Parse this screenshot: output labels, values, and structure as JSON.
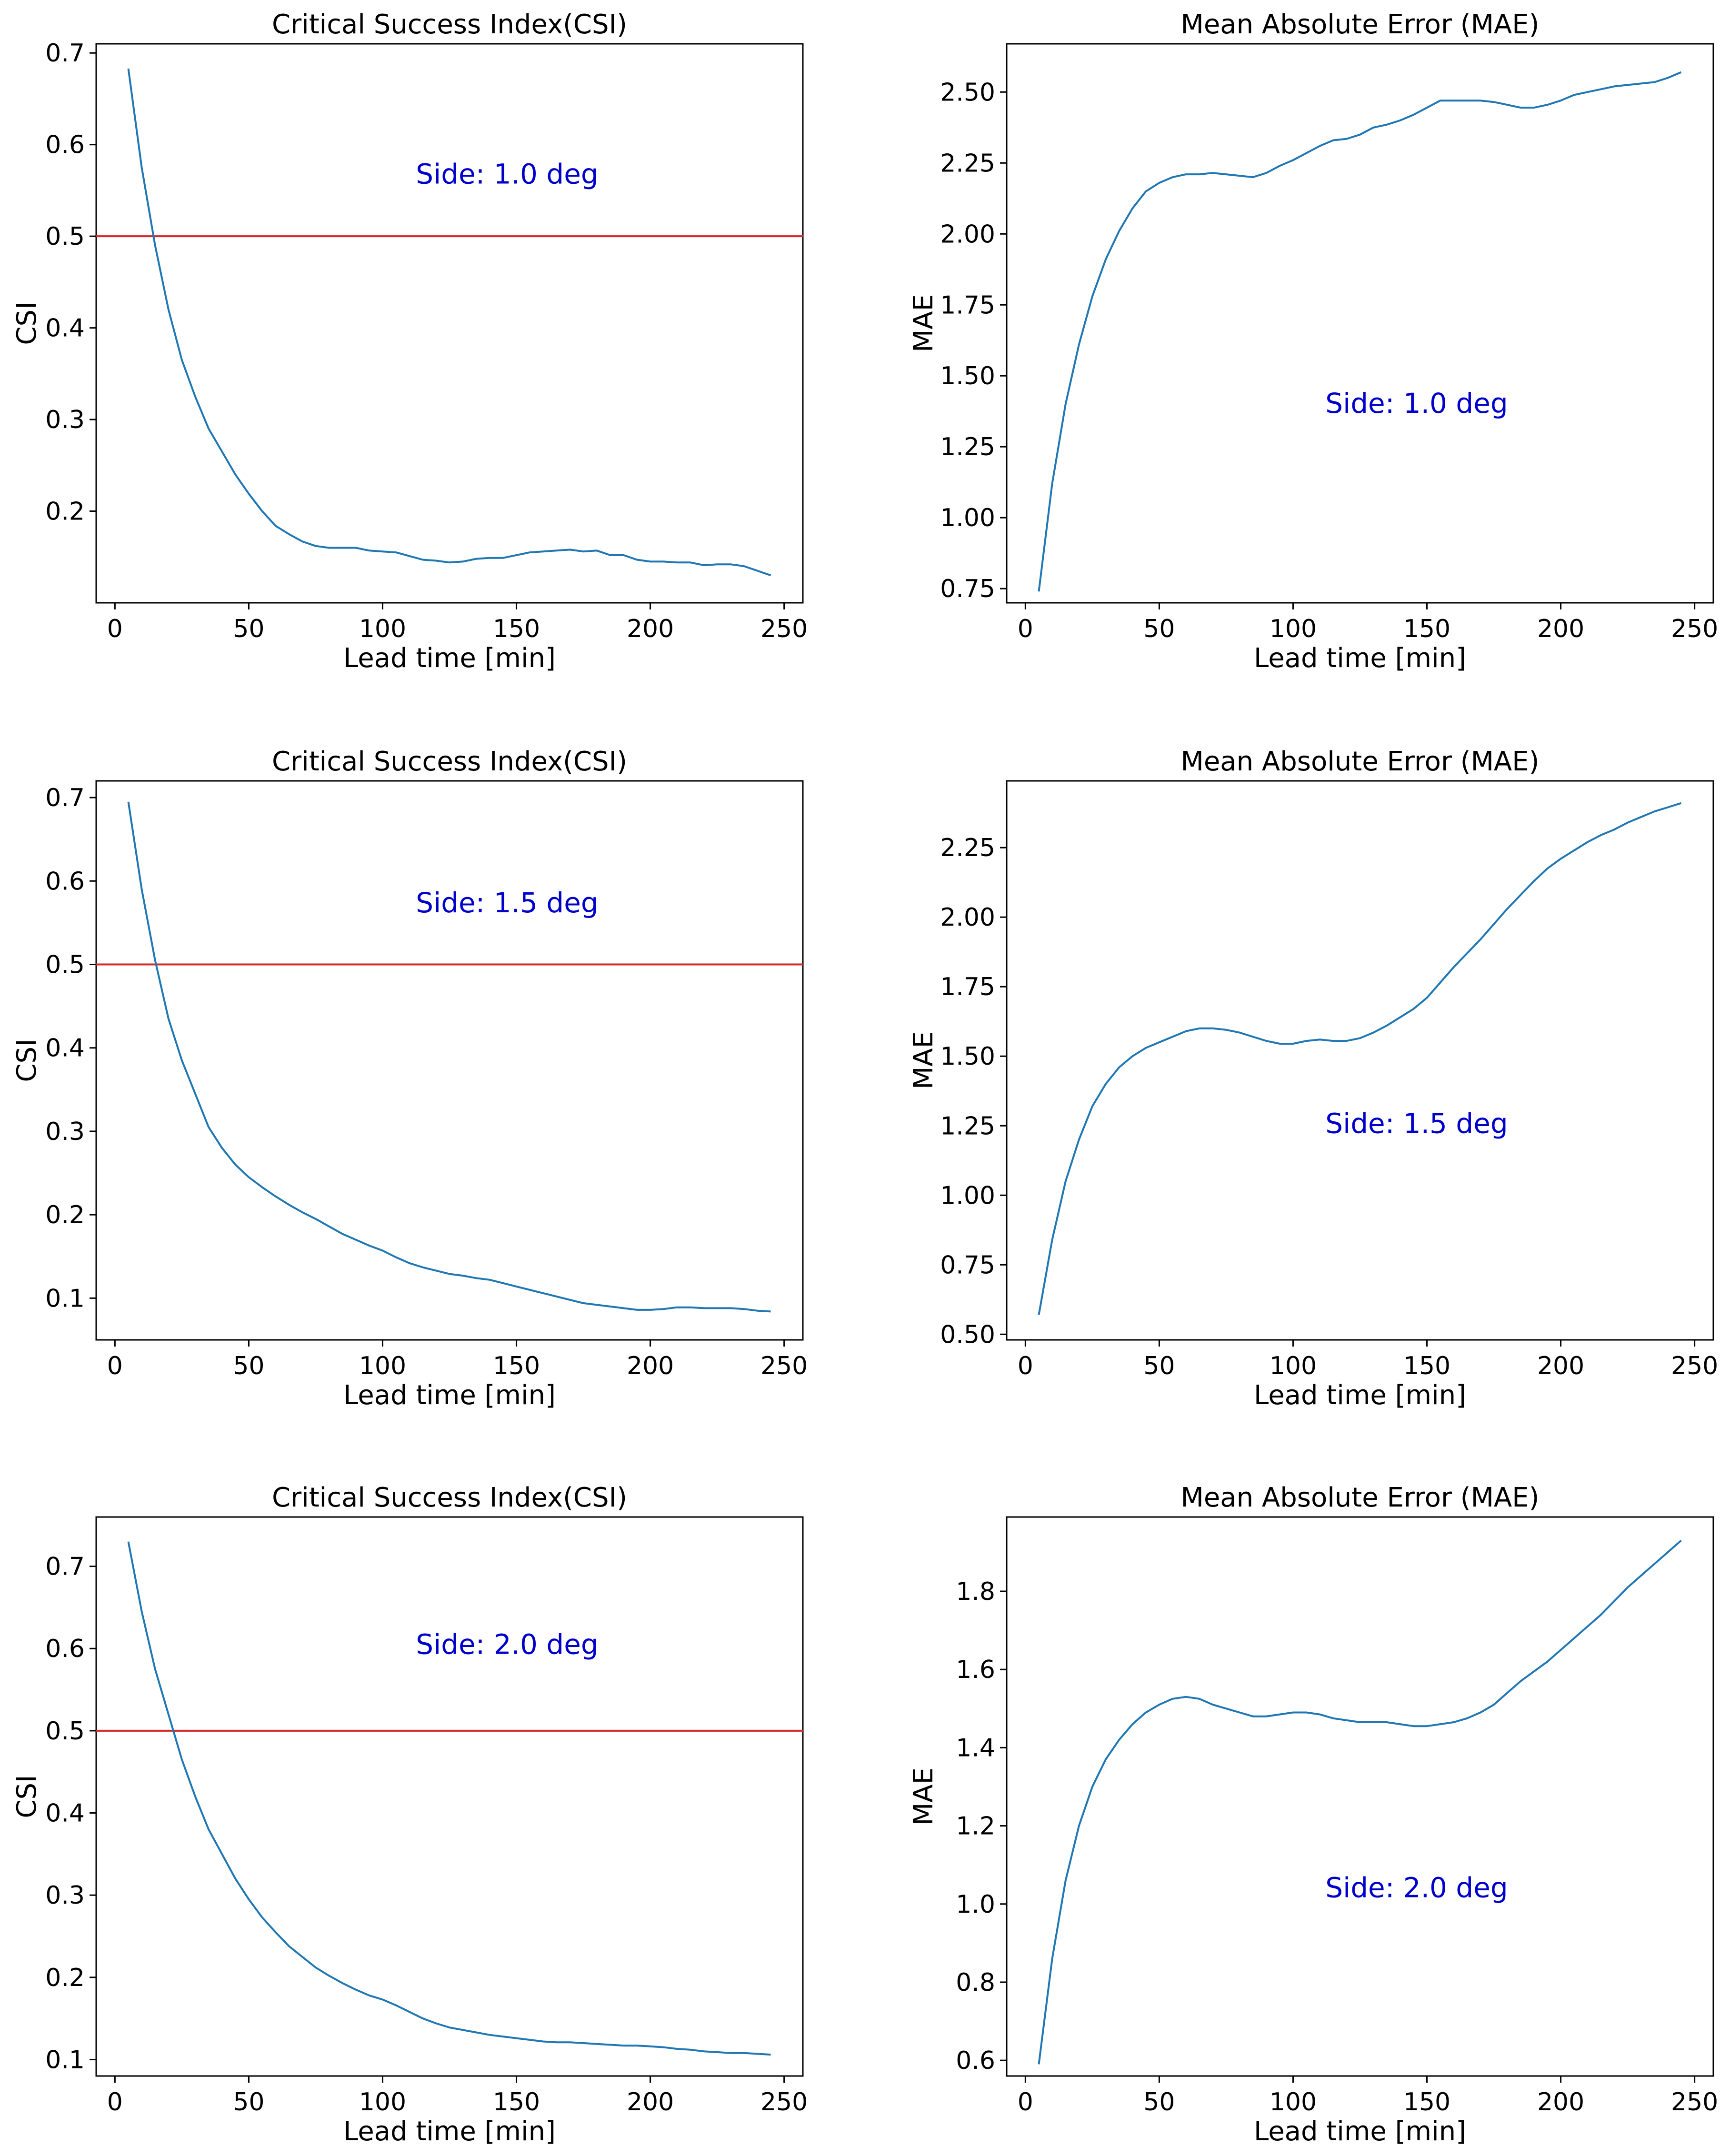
{
  "figure": {
    "panel_count": 6
  },
  "chart_data": [
    {
      "id": "csi-1-0",
      "type": "line",
      "title": "Critical Success Index(CSI)",
      "xlabel": "Lead time [min]",
      "ylabel": "CSI",
      "annotation": "Side: 1.0 deg",
      "xlim": [
        -7,
        257
      ],
      "ylim": [
        0.1,
        0.71
      ],
      "xticks": [
        0,
        50,
        100,
        150,
        200,
        250
      ],
      "yticks": [
        0.2,
        0.3,
        0.4,
        0.5,
        0.6,
        0.7
      ],
      "ytick_labels": [
        "0.2",
        "0.3",
        "0.4",
        "0.5",
        "0.6",
        "0.7"
      ],
      "hline": {
        "y": 0.5,
        "color": "#d62728"
      },
      "series": [
        {
          "name": "CSI",
          "color": "#1f77b4",
          "x": [
            5,
            10,
            15,
            20,
            25,
            30,
            35,
            40,
            45,
            50,
            55,
            60,
            65,
            70,
            75,
            80,
            85,
            90,
            95,
            100,
            105,
            110,
            115,
            120,
            125,
            130,
            135,
            140,
            145,
            150,
            155,
            160,
            165,
            170,
            175,
            180,
            185,
            190,
            195,
            200,
            205,
            210,
            215,
            220,
            225,
            230,
            235,
            240,
            245
          ],
          "y": [
            0.683,
            0.575,
            0.49,
            0.42,
            0.365,
            0.325,
            0.29,
            0.265,
            0.24,
            0.219,
            0.2,
            0.184,
            0.175,
            0.167,
            0.162,
            0.16,
            0.16,
            0.16,
            0.157,
            0.156,
            0.155,
            0.151,
            0.147,
            0.146,
            0.144,
            0.145,
            0.148,
            0.149,
            0.149,
            0.152,
            0.155,
            0.156,
            0.157,
            0.158,
            0.156,
            0.157,
            0.152,
            0.152,
            0.147,
            0.145,
            0.145,
            0.144,
            0.144,
            0.141,
            0.142,
            0.142,
            0.14,
            0.135,
            0.13
          ]
        }
      ]
    },
    {
      "id": "mae-1-0",
      "type": "line",
      "title": "Mean Absolute Error (MAE)",
      "xlabel": "Lead time [min]",
      "ylabel": "MAE",
      "annotation": "Side: 1.0 deg",
      "xlim": [
        -7,
        257
      ],
      "ylim": [
        0.7,
        2.67
      ],
      "xticks": [
        0,
        50,
        100,
        150,
        200,
        250
      ],
      "yticks": [
        0.75,
        1.0,
        1.25,
        1.5,
        1.75,
        2.0,
        2.25,
        2.5
      ],
      "ytick_labels": [
        "0.75",
        "1.00",
        "1.25",
        "1.50",
        "1.75",
        "2.00",
        "2.25",
        "2.50"
      ],
      "series": [
        {
          "name": "MAE",
          "color": "#1f77b4",
          "x": [
            5,
            10,
            15,
            20,
            25,
            30,
            35,
            40,
            45,
            50,
            55,
            60,
            65,
            70,
            75,
            80,
            85,
            90,
            95,
            100,
            105,
            110,
            115,
            120,
            125,
            130,
            135,
            140,
            145,
            150,
            155,
            160,
            165,
            170,
            175,
            180,
            185,
            190,
            195,
            200,
            205,
            210,
            215,
            220,
            225,
            230,
            235,
            240,
            245
          ],
          "y": [
            0.74,
            1.12,
            1.4,
            1.61,
            1.78,
            1.91,
            2.01,
            2.09,
            2.15,
            2.18,
            2.2,
            2.21,
            2.21,
            2.215,
            2.21,
            2.205,
            2.2,
            2.215,
            2.24,
            2.26,
            2.285,
            2.31,
            2.33,
            2.335,
            2.35,
            2.375,
            2.385,
            2.4,
            2.42,
            2.445,
            2.47,
            2.47,
            2.47,
            2.47,
            2.465,
            2.455,
            2.445,
            2.445,
            2.455,
            2.47,
            2.49,
            2.5,
            2.51,
            2.52,
            2.525,
            2.53,
            2.535,
            2.55,
            2.57
          ]
        }
      ]
    },
    {
      "id": "csi-1-5",
      "type": "line",
      "title": "Critical Success Index(CSI)",
      "xlabel": "Lead time [min]",
      "ylabel": "CSI",
      "annotation": "Side: 1.5 deg",
      "xlim": [
        -7,
        257
      ],
      "ylim": [
        0.05,
        0.72
      ],
      "xticks": [
        0,
        50,
        100,
        150,
        200,
        250
      ],
      "yticks": [
        0.1,
        0.2,
        0.3,
        0.4,
        0.5,
        0.6,
        0.7
      ],
      "ytick_labels": [
        "0.1",
        "0.2",
        "0.3",
        "0.4",
        "0.5",
        "0.6",
        "0.7"
      ],
      "hline": {
        "y": 0.5,
        "color": "#d62728"
      },
      "series": [
        {
          "name": "CSI",
          "color": "#1f77b4",
          "x": [
            5,
            10,
            15,
            20,
            25,
            30,
            35,
            40,
            45,
            50,
            55,
            60,
            65,
            70,
            75,
            80,
            85,
            90,
            95,
            100,
            105,
            110,
            115,
            120,
            125,
            130,
            135,
            140,
            145,
            150,
            155,
            160,
            165,
            170,
            175,
            180,
            185,
            190,
            195,
            200,
            205,
            210,
            215,
            220,
            225,
            230,
            235,
            240,
            245
          ],
          "y": [
            0.695,
            0.59,
            0.505,
            0.435,
            0.385,
            0.345,
            0.305,
            0.28,
            0.26,
            0.245,
            0.233,
            0.222,
            0.212,
            0.203,
            0.195,
            0.186,
            0.177,
            0.17,
            0.163,
            0.157,
            0.149,
            0.142,
            0.137,
            0.133,
            0.129,
            0.127,
            0.124,
            0.122,
            0.118,
            0.114,
            0.11,
            0.106,
            0.102,
            0.098,
            0.094,
            0.092,
            0.09,
            0.088,
            0.086,
            0.086,
            0.087,
            0.089,
            0.089,
            0.088,
            0.088,
            0.088,
            0.087,
            0.085,
            0.084
          ]
        }
      ]
    },
    {
      "id": "mae-1-5",
      "type": "line",
      "title": "Mean Absolute Error (MAE)",
      "xlabel": "Lead time [min]",
      "ylabel": "MAE",
      "annotation": "Side: 1.5 deg",
      "xlim": [
        -7,
        257
      ],
      "ylim": [
        0.48,
        2.49
      ],
      "xticks": [
        0,
        50,
        100,
        150,
        200,
        250
      ],
      "yticks": [
        0.5,
        0.75,
        1.0,
        1.25,
        1.5,
        1.75,
        2.0,
        2.25
      ],
      "ytick_labels": [
        "0.50",
        "0.75",
        "1.00",
        "1.25",
        "1.50",
        "1.75",
        "2.00",
        "2.25"
      ],
      "series": [
        {
          "name": "MAE",
          "color": "#1f77b4",
          "x": [
            5,
            10,
            15,
            20,
            25,
            30,
            35,
            40,
            45,
            50,
            55,
            60,
            65,
            70,
            75,
            80,
            85,
            90,
            95,
            100,
            105,
            110,
            115,
            120,
            125,
            130,
            135,
            140,
            145,
            150,
            155,
            160,
            165,
            170,
            175,
            180,
            185,
            190,
            195,
            200,
            205,
            210,
            215,
            220,
            225,
            230,
            235,
            240,
            245
          ],
          "y": [
            0.57,
            0.84,
            1.05,
            1.2,
            1.32,
            1.4,
            1.46,
            1.5,
            1.53,
            1.55,
            1.57,
            1.59,
            1.6,
            1.6,
            1.595,
            1.585,
            1.57,
            1.555,
            1.545,
            1.545,
            1.555,
            1.56,
            1.555,
            1.555,
            1.565,
            1.585,
            1.61,
            1.64,
            1.67,
            1.71,
            1.765,
            1.82,
            1.87,
            1.92,
            1.975,
            2.03,
            2.08,
            2.13,
            2.175,
            2.21,
            2.24,
            2.27,
            2.295,
            2.315,
            2.34,
            2.36,
            2.38,
            2.395,
            2.41
          ]
        }
      ]
    },
    {
      "id": "csi-2-0",
      "type": "line",
      "title": "Critical Success Index(CSI)",
      "xlabel": "Lead time [min]",
      "ylabel": "CSI",
      "annotation": "Side: 2.0 deg",
      "xlim": [
        -7,
        257
      ],
      "ylim": [
        0.08,
        0.76
      ],
      "xticks": [
        0,
        50,
        100,
        150,
        200,
        250
      ],
      "yticks": [
        0.1,
        0.2,
        0.3,
        0.4,
        0.5,
        0.6,
        0.7
      ],
      "ytick_labels": [
        "0.1",
        "0.2",
        "0.3",
        "0.4",
        "0.5",
        "0.6",
        "0.7"
      ],
      "hline": {
        "y": 0.5,
        "color": "#d62728"
      },
      "series": [
        {
          "name": "CSI",
          "color": "#1f77b4",
          "x": [
            5,
            10,
            15,
            20,
            25,
            30,
            35,
            40,
            45,
            50,
            55,
            60,
            65,
            70,
            75,
            80,
            85,
            90,
            95,
            100,
            105,
            110,
            115,
            120,
            125,
            130,
            135,
            140,
            145,
            150,
            155,
            160,
            165,
            170,
            175,
            180,
            185,
            190,
            195,
            200,
            205,
            210,
            215,
            220,
            225,
            230,
            235,
            240,
            245
          ],
          "y": [
            0.73,
            0.645,
            0.575,
            0.52,
            0.465,
            0.42,
            0.38,
            0.35,
            0.32,
            0.295,
            0.273,
            0.255,
            0.238,
            0.225,
            0.212,
            0.202,
            0.193,
            0.185,
            0.178,
            0.173,
            0.166,
            0.158,
            0.15,
            0.144,
            0.139,
            0.136,
            0.133,
            0.13,
            0.128,
            0.126,
            0.124,
            0.122,
            0.121,
            0.121,
            0.12,
            0.119,
            0.118,
            0.117,
            0.117,
            0.116,
            0.115,
            0.113,
            0.112,
            0.11,
            0.109,
            0.108,
            0.108,
            0.107,
            0.106
          ]
        }
      ]
    },
    {
      "id": "mae-2-0",
      "type": "line",
      "title": "Mean Absolute Error (MAE)",
      "xlabel": "Lead time [min]",
      "ylabel": "MAE",
      "annotation": "Side: 2.0 deg",
      "xlim": [
        -7,
        257
      ],
      "ylim": [
        0.56,
        1.99
      ],
      "xticks": [
        0,
        50,
        100,
        150,
        200,
        250
      ],
      "yticks": [
        0.6,
        0.8,
        1.0,
        1.2,
        1.4,
        1.6,
        1.8
      ],
      "ytick_labels": [
        "0.6",
        "0.8",
        "1.0",
        "1.2",
        "1.4",
        "1.6",
        "1.8"
      ],
      "series": [
        {
          "name": "MAE",
          "color": "#1f77b4",
          "x": [
            5,
            10,
            15,
            20,
            25,
            30,
            35,
            40,
            45,
            50,
            55,
            60,
            65,
            70,
            75,
            80,
            85,
            90,
            95,
            100,
            105,
            110,
            115,
            120,
            125,
            130,
            135,
            140,
            145,
            150,
            155,
            160,
            165,
            170,
            175,
            180,
            185,
            190,
            195,
            200,
            205,
            210,
            215,
            220,
            225,
            230,
            235,
            240,
            245
          ],
          "y": [
            0.59,
            0.86,
            1.06,
            1.2,
            1.3,
            1.37,
            1.42,
            1.46,
            1.49,
            1.51,
            1.525,
            1.53,
            1.525,
            1.51,
            1.5,
            1.49,
            1.48,
            1.48,
            1.485,
            1.49,
            1.49,
            1.485,
            1.475,
            1.47,
            1.465,
            1.465,
            1.465,
            1.46,
            1.455,
            1.455,
            1.46,
            1.465,
            1.475,
            1.49,
            1.51,
            1.54,
            1.57,
            1.595,
            1.62,
            1.65,
            1.68,
            1.71,
            1.74,
            1.775,
            1.81,
            1.84,
            1.87,
            1.9,
            1.93
          ]
        }
      ]
    }
  ]
}
